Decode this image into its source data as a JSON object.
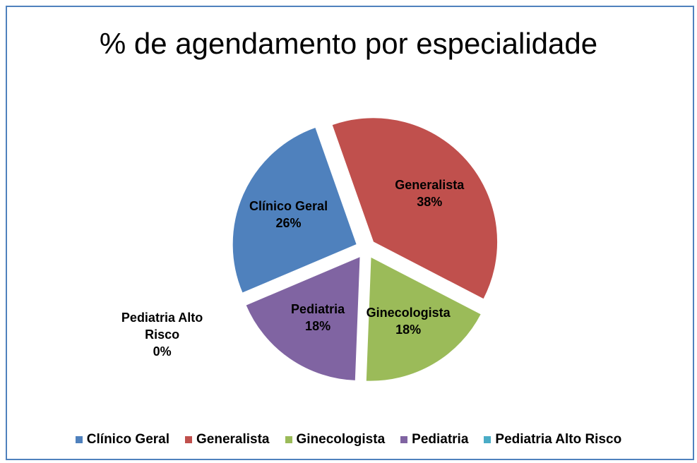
{
  "chart_data": {
    "type": "pie",
    "title": "% de agendamento por especialidade",
    "categories": [
      "Clínico Geral",
      "Generalista",
      "Ginecologista",
      "Pediatria",
      "Pediatria Alto Risco"
    ],
    "values": [
      26,
      38,
      18,
      18,
      0
    ],
    "value_labels": [
      "26%",
      "38%",
      "18%",
      "18%",
      "0%"
    ],
    "colors": [
      "#4f81bd",
      "#c0504d",
      "#9bbb59",
      "#8064a2",
      "#4bacc6"
    ],
    "legend": "bottom"
  }
}
